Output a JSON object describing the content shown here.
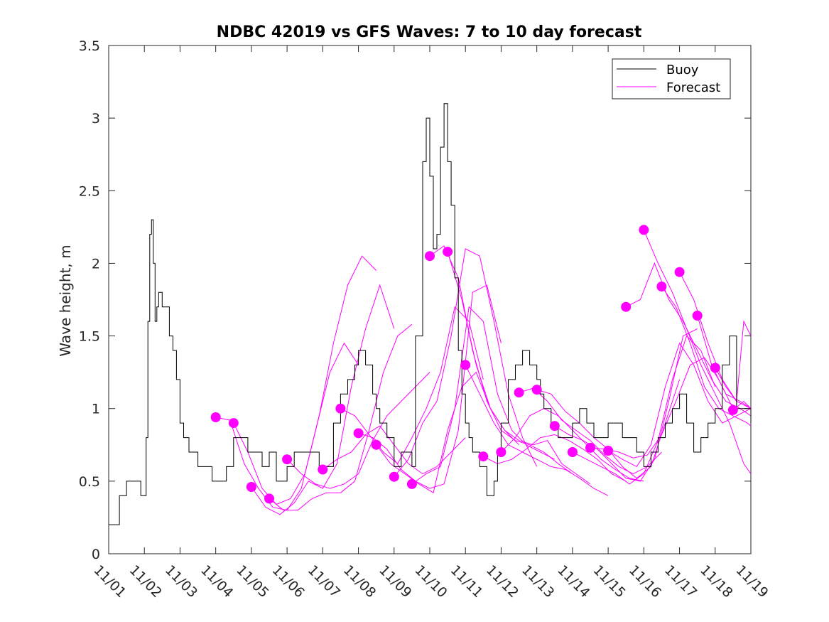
{
  "chart_data": {
    "type": "line",
    "title": "NDBC 42019 vs GFS Waves: 7 to 10 day forecast",
    "xlabel": "",
    "ylabel": "Wave height, m",
    "xlim": [
      0,
      18
    ],
    "ylim": [
      0,
      3.5
    ],
    "x_tick_values": [
      0,
      1,
      2,
      3,
      4,
      5,
      6,
      7,
      8,
      9,
      10,
      11,
      12,
      13,
      14,
      15,
      16,
      17,
      18
    ],
    "x_tick_labels": [
      "11/01",
      "11/02",
      "11/03",
      "11/04",
      "11/05",
      "11/06",
      "11/07",
      "11/08",
      "11/09",
      "11/10",
      "11/11",
      "11/12",
      "11/13",
      "11/14",
      "11/15",
      "11/16",
      "11/17",
      "11/18",
      "11/19"
    ],
    "y_tick_values": [
      0,
      0.5,
      1,
      1.5,
      2,
      2.5,
      3,
      3.5
    ],
    "y_tick_labels": [
      "0",
      "0.5",
      "1",
      "1.5",
      "2",
      "2.5",
      "3",
      "3.5"
    ],
    "legend": {
      "position": "top-right",
      "entries": [
        {
          "label": "Buoy",
          "color": "#000000"
        },
        {
          "label": "Forecast",
          "color": "#ff00ff"
        }
      ]
    },
    "colors": {
      "buoy": "#000000",
      "forecast": "#ff00ff"
    },
    "series": [
      {
        "name": "Buoy",
        "x": [
          0,
          0.25,
          0.3,
          0.4,
          0.5,
          0.55,
          0.7,
          0.85,
          0.9,
          1.0,
          1.05,
          1.1,
          1.15,
          1.2,
          1.25,
          1.3,
          1.35,
          1.4,
          1.5,
          1.6,
          1.7,
          1.8,
          1.9,
          2.0,
          2.1,
          2.2,
          2.25,
          2.3,
          2.5,
          2.7,
          2.9,
          3.0,
          3.3,
          3.5,
          3.7,
          3.9,
          4.0,
          4.3,
          4.5,
          4.7,
          4.9,
          5.0,
          5.2,
          5.5,
          5.7,
          5.9,
          6.0,
          6.3,
          6.5,
          6.7,
          6.9,
          7.0,
          7.2,
          7.4,
          7.5,
          7.6,
          7.7,
          7.8,
          7.9,
          8.0,
          8.2,
          8.4,
          8.5,
          8.6,
          8.8,
          8.9,
          9.0,
          9.1,
          9.2,
          9.3,
          9.4,
          9.5,
          9.6,
          9.7,
          9.8,
          9.9,
          10.0,
          10.1,
          10.2,
          10.4,
          10.6,
          10.8,
          10.9,
          11.0,
          11.2,
          11.4,
          11.6,
          11.8,
          12.0,
          12.1,
          12.2,
          12.4,
          12.6,
          12.8,
          13.0,
          13.2,
          13.4,
          13.6,
          13.8,
          14.0,
          14.2,
          14.4,
          14.6,
          14.8,
          15.0,
          15.2,
          15.4,
          15.6,
          15.8,
          16.0,
          16.2,
          16.4,
          16.6,
          16.8,
          17.0,
          17.2,
          17.4,
          17.6,
          17.8,
          17.9,
          18.0
        ],
        "values": [
          0.2,
          0.2,
          0.4,
          0.4,
          0.5,
          0.5,
          0.5,
          0.5,
          0.4,
          0.4,
          0.8,
          1.6,
          2.2,
          2.3,
          2.0,
          1.6,
          1.7,
          1.8,
          1.7,
          1.7,
          1.5,
          1.4,
          1.2,
          0.9,
          0.8,
          0.8,
          0.7,
          0.7,
          0.6,
          0.6,
          0.5,
          0.5,
          0.6,
          0.8,
          0.8,
          0.7,
          0.7,
          0.6,
          0.7,
          0.5,
          0.5,
          0.6,
          0.7,
          0.7,
          0.7,
          0.6,
          0.6,
          0.9,
          1.1,
          1.2,
          1.3,
          1.4,
          1.3,
          1.1,
          1.0,
          0.9,
          0.9,
          0.8,
          0.8,
          0.6,
          0.7,
          0.7,
          0.6,
          1.5,
          2.7,
          3.0,
          2.6,
          2.1,
          2.2,
          2.8,
          3.1,
          2.7,
          2.4,
          1.9,
          1.4,
          1.1,
          0.9,
          0.8,
          0.7,
          0.6,
          0.4,
          0.5,
          0.7,
          0.9,
          1.2,
          1.3,
          1.4,
          1.3,
          1.2,
          1.1,
          1.0,
          0.9,
          0.8,
          0.8,
          0.9,
          1.0,
          0.9,
          0.8,
          0.8,
          0.9,
          0.9,
          0.8,
          0.8,
          0.7,
          0.6,
          0.7,
          0.8,
          0.9,
          1.0,
          1.1,
          0.9,
          0.7,
          0.8,
          0.9,
          1.0,
          1.3,
          1.5,
          1.0,
          1.0,
          1.0,
          0.9
        ]
      },
      {
        "name": "Forecast 1",
        "x": [
          3.0,
          3.4,
          3.8,
          4.2,
          4.6,
          5.0,
          5.4,
          5.8,
          6.2,
          6.6,
          7.0
        ],
        "values": [
          0.94,
          0.92,
          0.62,
          0.45,
          0.32,
          0.3,
          0.45,
          0.85,
          1.25,
          1.45,
          1.3
        ]
      },
      {
        "name": "Forecast 2",
        "x": [
          3.5,
          3.9,
          4.3,
          4.7,
          5.1,
          5.5,
          5.9,
          6.3,
          6.7,
          7.1,
          7.5
        ],
        "values": [
          0.9,
          0.7,
          0.45,
          0.34,
          0.38,
          0.55,
          0.95,
          1.45,
          1.85,
          2.05,
          1.95
        ]
      },
      {
        "name": "Forecast 3",
        "x": [
          4.0,
          4.4,
          4.8,
          5.2,
          5.6,
          6.0,
          6.4,
          6.8,
          7.2,
          7.6,
          8.0
        ],
        "values": [
          0.46,
          0.32,
          0.27,
          0.35,
          0.5,
          0.45,
          0.62,
          1.15,
          1.55,
          1.85,
          1.55
        ]
      },
      {
        "name": "Forecast 4",
        "x": [
          4.5,
          4.9,
          5.3,
          5.7,
          6.1,
          6.5,
          6.9,
          7.3,
          7.7,
          8.1,
          8.5
        ],
        "values": [
          0.38,
          0.3,
          0.3,
          0.38,
          0.42,
          0.42,
          0.5,
          0.85,
          1.25,
          1.5,
          1.58
        ]
      },
      {
        "name": "Forecast 5",
        "x": [
          5.0,
          5.4,
          5.8,
          6.2,
          6.6,
          7.0,
          7.4,
          7.8,
          8.2,
          8.6,
          9.0
        ],
        "values": [
          0.65,
          0.55,
          0.48,
          0.45,
          0.48,
          0.55,
          0.78,
          0.95,
          1.05,
          1.15,
          1.25
        ]
      },
      {
        "name": "Forecast 6",
        "x": [
          6.0,
          6.4,
          6.8,
          7.2,
          7.6,
          8.0,
          8.4,
          8.8,
          9.2,
          9.6,
          10.0
        ],
        "values": [
          0.58,
          0.65,
          0.7,
          0.82,
          0.88,
          0.75,
          0.62,
          0.55,
          0.6,
          0.7,
          0.8
        ]
      },
      {
        "name": "Forecast 7",
        "x": [
          6.5,
          6.9,
          7.3,
          7.7,
          8.1,
          8.5,
          8.9,
          9.3,
          9.7,
          10.1,
          10.5
        ],
        "values": [
          1.0,
          0.95,
          0.82,
          0.7,
          0.62,
          0.8,
          1.0,
          1.25,
          1.7,
          1.6,
          1.2
        ]
      },
      {
        "name": "Forecast 8",
        "x": [
          7.0,
          7.4,
          7.8,
          8.2,
          8.6,
          9.0,
          9.4,
          9.8,
          10.2,
          10.6,
          11.0
        ],
        "values": [
          0.83,
          0.8,
          0.72,
          0.58,
          0.5,
          0.45,
          0.48,
          0.85,
          1.8,
          1.85,
          1.45
        ]
      },
      {
        "name": "Forecast 9",
        "x": [
          7.5,
          7.9,
          8.3,
          8.7,
          9.1,
          9.5,
          9.9,
          10.3,
          10.7,
          11.1,
          11.5
        ],
        "values": [
          0.75,
          0.62,
          0.55,
          0.48,
          0.42,
          0.85,
          1.15,
          1.25,
          1.0,
          0.85,
          0.75
        ]
      },
      {
        "name": "Forecast 10",
        "x": [
          8.0,
          8.4,
          8.8,
          9.2,
          9.6,
          10.0,
          10.4,
          10.8,
          11.2,
          11.6,
          12.0
        ],
        "values": [
          0.53,
          0.65,
          0.9,
          1.05,
          1.5,
          2.1,
          2.05,
          1.6,
          1.1,
          0.8,
          0.6
        ]
      },
      {
        "name": "Forecast 11",
        "x": [
          8.5,
          8.9,
          9.3,
          9.7,
          10.1,
          10.5,
          10.9,
          11.3,
          11.7,
          12.1,
          12.5
        ],
        "values": [
          0.48,
          0.55,
          0.6,
          1.0,
          1.7,
          1.6,
          1.1,
          0.85,
          0.75,
          0.7,
          0.65
        ]
      },
      {
        "name": "Forecast 12",
        "x": [
          9.0,
          9.4,
          9.8,
          10.2,
          10.6,
          11.0,
          11.4,
          11.8,
          12.2,
          12.6,
          13.0
        ],
        "values": [
          2.05,
          2.12,
          1.9,
          1.4,
          1.05,
          0.85,
          0.78,
          0.75,
          0.7,
          0.62,
          0.55
        ]
      },
      {
        "name": "Forecast 13",
        "x": [
          9.5,
          9.9,
          10.3,
          10.7,
          11.1,
          11.5,
          11.9,
          12.3,
          12.7,
          13.1,
          13.5
        ],
        "values": [
          2.08,
          1.75,
          1.3,
          1.0,
          0.85,
          0.78,
          0.75,
          0.78,
          0.62,
          0.55,
          0.48
        ]
      },
      {
        "name": "Forecast 14",
        "x": [
          10.0,
          10.4,
          10.8,
          11.2,
          11.6,
          12.0,
          12.4,
          12.8,
          13.2,
          13.6,
          14.0
        ],
        "values": [
          1.3,
          1.1,
          0.9,
          0.75,
          0.7,
          0.65,
          0.6,
          0.58,
          0.52,
          0.45,
          0.4
        ]
      },
      {
        "name": "Forecast 15",
        "x": [
          10.5,
          10.9,
          11.3,
          11.7,
          12.1,
          12.5,
          12.9,
          13.3,
          13.7,
          14.1,
          14.5
        ],
        "values": [
          0.67,
          0.62,
          0.65,
          0.72,
          0.8,
          0.82,
          0.78,
          0.72,
          0.65,
          0.55,
          0.5
        ]
      },
      {
        "name": "Forecast 16",
        "x": [
          11.0,
          11.4,
          11.8,
          12.2,
          12.6,
          13.0,
          13.4,
          13.8,
          14.2,
          14.6,
          15.0
        ],
        "values": [
          0.7,
          0.8,
          0.95,
          1.0,
          0.95,
          0.85,
          0.75,
          0.65,
          0.58,
          0.52,
          0.5
        ]
      },
      {
        "name": "Forecast 17",
        "x": [
          11.5,
          11.9,
          12.3,
          12.7,
          13.1,
          13.5,
          13.9,
          14.3,
          14.7,
          15.1,
          15.5
        ],
        "values": [
          1.11,
          1.14,
          1.05,
          0.92,
          0.85,
          0.78,
          0.68,
          0.6,
          0.55,
          0.6,
          0.7
        ]
      },
      {
        "name": "Forecast 18",
        "x": [
          12.0,
          12.4,
          12.8,
          13.2,
          13.6,
          14.0,
          14.4,
          14.8,
          15.2,
          15.6,
          16.0
        ],
        "values": [
          1.13,
          1.1,
          0.98,
          0.9,
          0.8,
          0.72,
          0.6,
          0.52,
          0.6,
          0.9,
          1.2
        ]
      },
      {
        "name": "Forecast 19",
        "x": [
          12.5,
          12.9,
          13.3,
          13.7,
          14.1,
          14.5,
          14.9,
          15.3,
          15.7,
          16.1,
          16.5
        ],
        "values": [
          0.88,
          0.82,
          0.78,
          0.72,
          0.62,
          0.52,
          0.5,
          0.65,
          1.05,
          1.5,
          1.55
        ]
      },
      {
        "name": "Forecast 20",
        "x": [
          13.0,
          13.4,
          13.8,
          14.2,
          14.6,
          15.0,
          15.4,
          15.8,
          16.2,
          16.6,
          17.0
        ],
        "values": [
          0.7,
          0.65,
          0.6,
          0.55,
          0.48,
          0.55,
          0.78,
          1.2,
          1.5,
          1.4,
          1.15
        ]
      },
      {
        "name": "Forecast 21",
        "x": [
          13.5,
          13.9,
          14.3,
          14.7,
          15.1,
          15.5,
          15.9,
          16.3,
          16.7,
          17.1,
          17.5
        ],
        "values": [
          0.73,
          0.72,
          0.7,
          0.66,
          0.68,
          0.82,
          1.05,
          1.3,
          1.35,
          1.2,
          1.0
        ]
      },
      {
        "name": "Forecast 22",
        "x": [
          14.0,
          14.4,
          14.8,
          15.2,
          15.6,
          16.0,
          16.4,
          16.8,
          17.2,
          17.6,
          18.0
        ],
        "values": [
          0.71,
          0.65,
          0.6,
          0.75,
          1.15,
          1.45,
          1.3,
          1.05,
          0.9,
          0.95,
          1.0
        ]
      },
      {
        "name": "Forecast 23",
        "x": [
          14.5,
          14.9,
          15.3,
          15.7,
          16.1,
          16.5,
          16.9,
          17.3,
          17.7,
          18.0
        ],
        "values": [
          1.7,
          1.75,
          2.0,
          1.75,
          1.6,
          1.4,
          1.2,
          1.05,
          1.0,
          0.95
        ]
      },
      {
        "name": "Forecast 24",
        "x": [
          15.0,
          15.4,
          15.8,
          16.2,
          16.6,
          17.0,
          17.4,
          17.8,
          18.0
        ],
        "values": [
          2.23,
          2.0,
          1.8,
          1.55,
          1.3,
          1.1,
          0.9,
          0.62,
          0.55
        ]
      },
      {
        "name": "Forecast 25",
        "x": [
          15.5,
          15.9,
          16.3,
          16.7,
          17.1,
          17.5,
          17.9,
          18.0
        ],
        "values": [
          1.84,
          1.7,
          1.45,
          1.15,
          1.0,
          0.95,
          0.9,
          0.88
        ]
      },
      {
        "name": "Forecast 26",
        "x": [
          16.0,
          16.4,
          16.8,
          17.2,
          17.6,
          18.0
        ],
        "values": [
          1.94,
          1.75,
          1.45,
          1.2,
          1.05,
          1.0
        ]
      },
      {
        "name": "Forecast 27",
        "x": [
          16.5,
          16.9,
          17.3,
          17.7,
          18.0
        ],
        "values": [
          1.64,
          1.3,
          1.1,
          1.05,
          1.0
        ]
      },
      {
        "name": "Forecast 28",
        "x": [
          17.0,
          17.3,
          17.6,
          17.8,
          18.0
        ],
        "values": [
          1.28,
          1.15,
          1.05,
          1.6,
          1.5
        ]
      },
      {
        "name": "Forecast 29",
        "x": [
          17.5,
          17.8,
          18.0
        ],
        "values": [
          0.99,
          1.05,
          1.0
        ]
      }
    ],
    "forecast_markers": {
      "x": [
        3.0,
        3.5,
        4.0,
        4.5,
        5.0,
        6.0,
        6.5,
        7.0,
        7.5,
        8.0,
        8.5,
        9.0,
        9.5,
        10.0,
        10.5,
        11.0,
        11.5,
        12.0,
        12.5,
        13.0,
        13.5,
        14.0,
        14.5,
        15.0,
        15.5,
        16.0,
        16.5,
        17.0,
        17.5
      ],
      "y": [
        0.94,
        0.9,
        0.46,
        0.38,
        0.65,
        0.58,
        1.0,
        0.83,
        0.75,
        0.53,
        0.48,
        2.05,
        2.08,
        1.3,
        0.67,
        0.7,
        1.11,
        1.13,
        0.88,
        0.7,
        0.73,
        0.71,
        1.7,
        2.23,
        1.84,
        1.94,
        1.64,
        1.28,
        0.99
      ]
    }
  }
}
